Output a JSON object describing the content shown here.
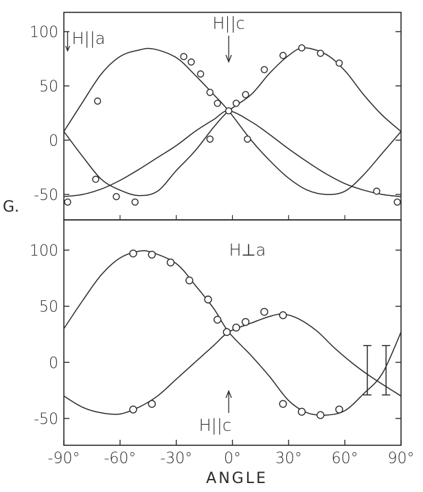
{
  "chart_data": [
    {
      "type": "scatter",
      "panel": "top",
      "title": "",
      "xlabel": "",
      "ylabel": "G.",
      "xlim": [
        -90,
        90
      ],
      "ylim": [
        -75,
        115
      ],
      "y_ticks": [
        100,
        50,
        0,
        -50
      ],
      "y_tick_labels": [
        "100",
        "50",
        "0",
        "-50"
      ],
      "annotations": [
        {
          "text": "H||a",
          "x": -88,
          "y": 95,
          "arrow": "down"
        },
        {
          "text": "H||c",
          "x": -2,
          "y": 100,
          "arrow": "down"
        }
      ],
      "series": [
        {
          "kind": "points",
          "x": [
            -88,
            -72,
            -73,
            -62,
            -52,
            -26,
            -22,
            -17,
            -12,
            -12,
            -8,
            -2,
            2,
            7,
            8,
            17,
            27,
            37,
            47,
            57,
            77,
            88
          ],
          "y": [
            -57,
            36,
            -36,
            -52,
            -57,
            77,
            72,
            61,
            44,
            1,
            34,
            27,
            34,
            42,
            1,
            65,
            78,
            85,
            80,
            71,
            -47,
            -57
          ]
        },
        {
          "kind": "curve",
          "x": [
            -90,
            -80,
            -70,
            -60,
            -50,
            -42,
            -30,
            -20,
            -10,
            -2,
            10,
            20,
            30,
            40,
            50,
            60,
            70,
            80,
            90
          ],
          "y": [
            8,
            35,
            61,
            77,
            83,
            84,
            76,
            60,
            42,
            27,
            0,
            -19,
            -35,
            -46,
            -50,
            -47,
            -32,
            -12,
            8
          ]
        },
        {
          "kind": "curve",
          "x": [
            -90,
            -80,
            -70,
            -60,
            -50,
            -40,
            -30,
            -20,
            -10,
            -2,
            10,
            20,
            30,
            38,
            50,
            60,
            70,
            80,
            90
          ],
          "y": [
            8,
            -15,
            -36,
            -46,
            -51,
            -47,
            -28,
            -10,
            12,
            27,
            42,
            62,
            78,
            85,
            79,
            64,
            42,
            23,
            8
          ]
        },
        {
          "kind": "curve",
          "x": [
            -90,
            -80,
            -70,
            -60,
            -50,
            -40,
            -30,
            -20,
            -10,
            -2,
            10,
            20,
            30,
            40,
            50,
            60,
            70,
            80,
            90
          ],
          "y": [
            -52,
            -50,
            -45,
            -37,
            -27,
            -16,
            -5,
            8,
            19,
            27,
            17,
            5,
            -8,
            -20,
            -31,
            -40,
            -46,
            -50,
            -52
          ]
        }
      ]
    },
    {
      "type": "scatter",
      "panel": "bottom",
      "title": "",
      "xlabel": "ANGLE",
      "ylabel": "",
      "xlim": [
        -90,
        90
      ],
      "ylim": [
        -70,
        125
      ],
      "x_ticks": [
        -90,
        -60,
        -30,
        0,
        30,
        60,
        90
      ],
      "x_tick_labels": [
        "-90°",
        "-60°",
        "-30°",
        "0°",
        "30°",
        "60°",
        "90°"
      ],
      "y_ticks": [
        100,
        50,
        0,
        -50
      ],
      "y_tick_labels": [
        "100",
        "50",
        "0",
        "-50"
      ],
      "annotations": [
        {
          "text": "H⊥a",
          "x": 8,
          "y": 100
        },
        {
          "text": "H||c",
          "x": -2,
          "y": -50,
          "arrow": "up"
        }
      ],
      "series": [
        {
          "kind": "points",
          "x": [
            -53,
            -53,
            -43,
            -43,
            -33,
            -23,
            -13,
            -8,
            -3,
            2,
            7,
            17,
            27,
            27,
            37,
            47,
            57
          ],
          "y": [
            97,
            -42,
            96,
            -37,
            89,
            73,
            56,
            38,
            27,
            31,
            36,
            45,
            42,
            -37,
            -44,
            -47,
            -42
          ],
          "r": 5
        },
        {
          "kind": "curve",
          "x": [
            -90,
            -80,
            -70,
            -60,
            -50,
            -43,
            -30,
            -20,
            -10,
            -2,
            10,
            20,
            30,
            40,
            50,
            60,
            70,
            80,
            90
          ],
          "y": [
            30,
            55,
            78,
            93,
            99,
            98,
            88,
            69,
            48,
            27,
            6,
            -13,
            -34,
            -45,
            -47,
            -43,
            -28,
            -10,
            27
          ]
        },
        {
          "kind": "curve",
          "x": [
            -90,
            -80,
            -70,
            -60,
            -50,
            -40,
            -30,
            -20,
            -10,
            -2,
            10,
            20,
            27,
            35,
            45,
            55,
            65,
            75,
            90
          ],
          "y": [
            -30,
            -40,
            -45,
            -46,
            -40,
            -30,
            -15,
            0,
            15,
            27,
            35,
            41,
            43,
            39,
            28,
            12,
            -2,
            -14,
            -30
          ]
        },
        {
          "kind": "error_bars",
          "x": [
            72,
            82
          ],
          "y": [
            -7,
            -7
          ],
          "half_height": [
            22,
            22
          ]
        }
      ]
    }
  ]
}
